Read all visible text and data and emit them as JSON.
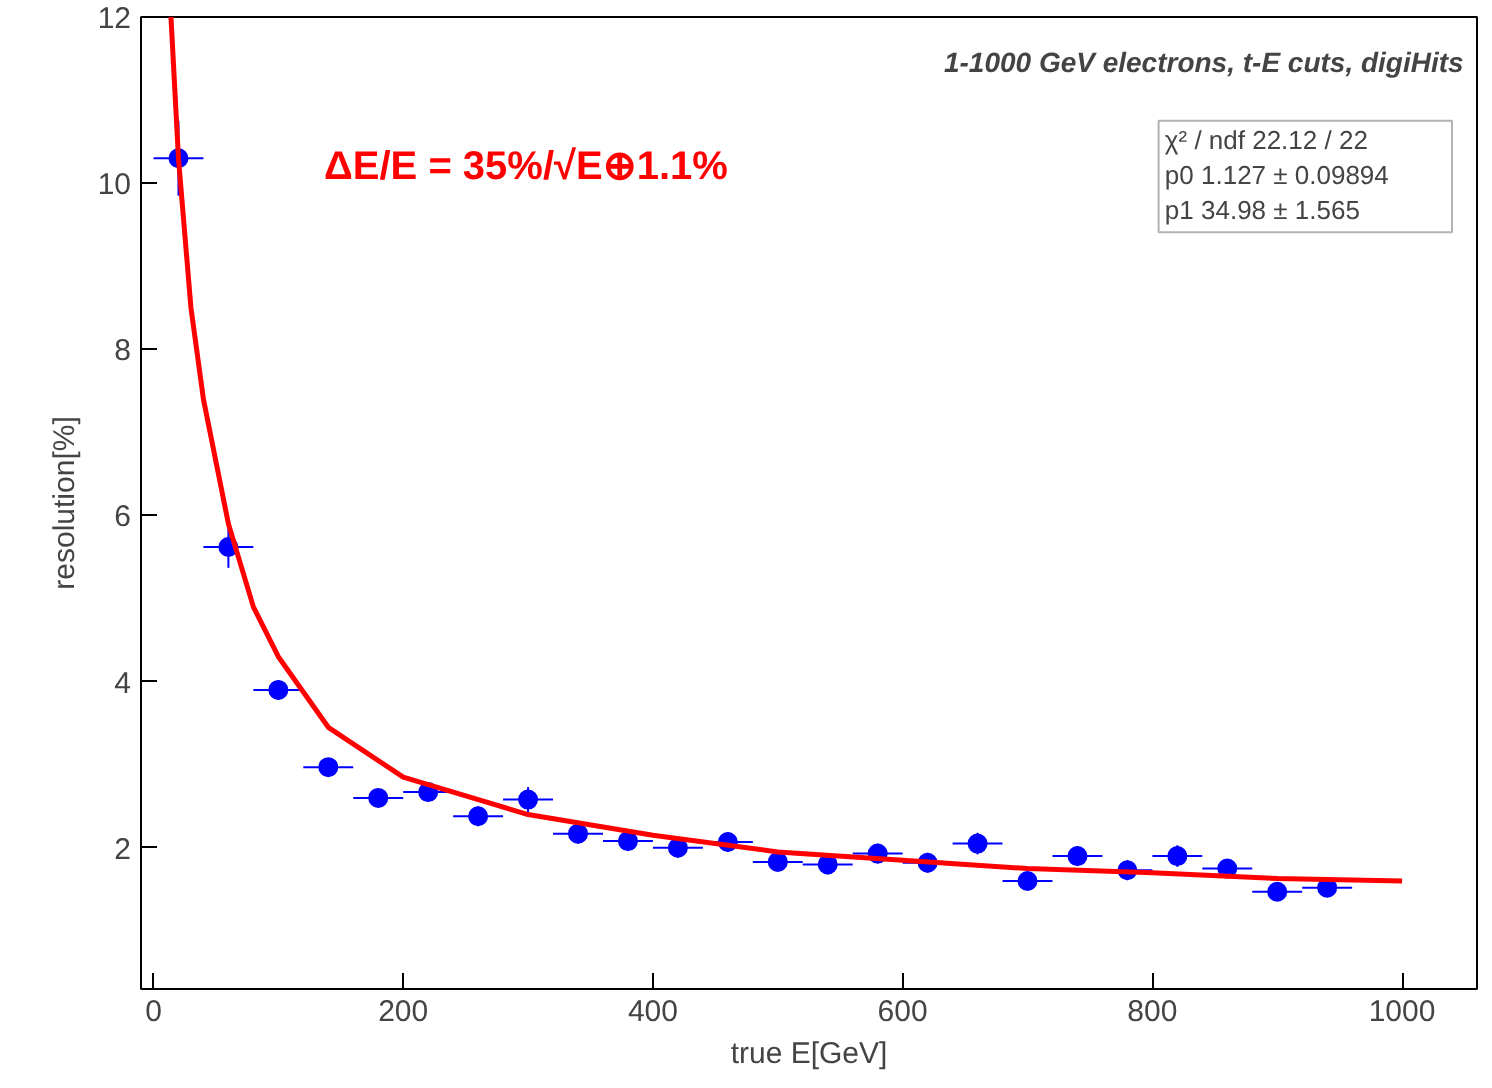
{
  "chart_data": {
    "type": "scatter",
    "title": "1-1000 GeV electrons, t-E cuts, digiHits",
    "xlabel": "true E[GeV]",
    "ylabel": "resolution[%]",
    "xlim": [
      -10,
      1060
    ],
    "ylim": [
      0.3,
      12
    ],
    "xticks": [
      0,
      200,
      400,
      600,
      800,
      1000
    ],
    "yticks": [
      2,
      4,
      6,
      8,
      10,
      12
    ],
    "marker": "circle",
    "grid": false,
    "series": [
      {
        "color": "#0000ff",
        "x": [
          20,
          60,
          100,
          140,
          180,
          220,
          260,
          300,
          340,
          380,
          420,
          460,
          500,
          540,
          580,
          620,
          660,
          700,
          740,
          780,
          820,
          860,
          900,
          940
        ],
        "values": [
          10.3,
          5.62,
          3.9,
          2.97,
          2.6,
          2.67,
          2.38,
          2.58,
          2.17,
          2.08,
          2.0,
          2.07,
          1.83,
          1.8,
          1.93,
          1.82,
          2.05,
          1.6,
          1.9,
          1.73,
          1.9,
          1.75,
          1.47,
          1.52
        ],
        "errors": [
          0.45,
          0.25,
          0.12,
          0.1,
          0.1,
          0.1,
          0.12,
          0.15,
          0.12,
          0.12,
          0.12,
          0.12,
          0.1,
          0.12,
          0.12,
          0.12,
          0.13,
          0.1,
          0.12,
          0.12,
          0.13,
          0.1,
          0.1,
          0.1
        ],
        "xerrors": [
          20,
          20,
          20,
          20,
          20,
          20,
          20,
          20,
          20,
          20,
          20,
          20,
          20,
          20,
          20,
          20,
          20,
          20,
          20,
          20,
          20,
          20,
          20,
          20
        ]
      },
      {
        "type": "line",
        "color": "#ff0000",
        "marker": "none",
        "x": [
          14,
          20,
          30,
          40,
          60,
          80,
          100,
          140,
          200,
          300,
          400,
          500,
          600,
          700,
          800,
          900,
          1000
        ],
        "values": [
          12,
          10.3,
          8.5,
          7.4,
          5.9,
          4.9,
          4.3,
          3.45,
          2.85,
          2.4,
          2.15,
          1.95,
          1.85,
          1.75,
          1.7,
          1.63,
          1.6
        ]
      }
    ],
    "annotations": [
      "ΔE/E = 35%/√E⊕1.1%",
      "χ² / ndf    22.12 / 22",
      "p0 1.127  ± 0.09894",
      "p1    34.98  ± 1.565"
    ]
  }
}
